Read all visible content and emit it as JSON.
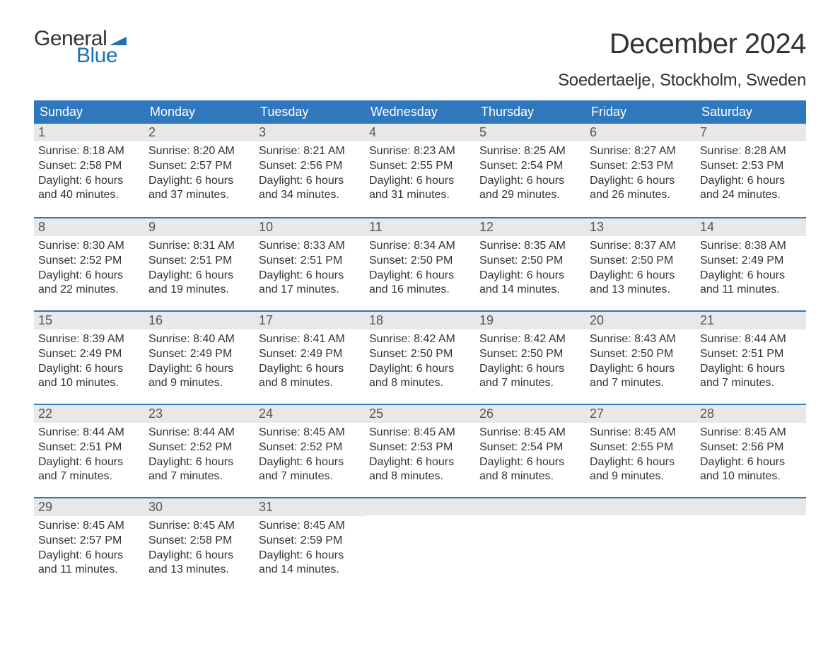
{
  "brand": {
    "word1": "General",
    "word2": "Blue",
    "word1_color": "#333333",
    "word2_color": "#1f6fb2",
    "flag_color": "#1f6fb2",
    "fontsize": 30
  },
  "title": {
    "text": "December 2024",
    "fontsize": 40,
    "color": "#333333"
  },
  "location": {
    "text": "Soedertaelje, Stockholm, Sweden",
    "fontsize": 24,
    "color": "#333333"
  },
  "colors": {
    "header_bg": "#2f78bd",
    "header_text": "#ffffff",
    "daynum_bg": "#e8e8e8",
    "daynum_text": "#555555",
    "body_text": "#333333",
    "week_divider": "#2f78bd",
    "page_bg": "#ffffff"
  },
  "typography": {
    "weekday_fontsize": 18,
    "daynum_fontsize": 18,
    "body_fontsize": 16,
    "font_family": "Arial"
  },
  "layout": {
    "type": "table",
    "columns": 7,
    "rows": 5,
    "week_divider_width": 2
  },
  "weekdays": [
    "Sunday",
    "Monday",
    "Tuesday",
    "Wednesday",
    "Thursday",
    "Friday",
    "Saturday"
  ],
  "weeks": [
    [
      {
        "num": "1",
        "sunrise": "Sunrise: 8:18 AM",
        "sunset": "Sunset: 2:58 PM",
        "day1": "Daylight: 6 hours",
        "day2": "and 40 minutes."
      },
      {
        "num": "2",
        "sunrise": "Sunrise: 8:20 AM",
        "sunset": "Sunset: 2:57 PM",
        "day1": "Daylight: 6 hours",
        "day2": "and 37 minutes."
      },
      {
        "num": "3",
        "sunrise": "Sunrise: 8:21 AM",
        "sunset": "Sunset: 2:56 PM",
        "day1": "Daylight: 6 hours",
        "day2": "and 34 minutes."
      },
      {
        "num": "4",
        "sunrise": "Sunrise: 8:23 AM",
        "sunset": "Sunset: 2:55 PM",
        "day1": "Daylight: 6 hours",
        "day2": "and 31 minutes."
      },
      {
        "num": "5",
        "sunrise": "Sunrise: 8:25 AM",
        "sunset": "Sunset: 2:54 PM",
        "day1": "Daylight: 6 hours",
        "day2": "and 29 minutes."
      },
      {
        "num": "6",
        "sunrise": "Sunrise: 8:27 AM",
        "sunset": "Sunset: 2:53 PM",
        "day1": "Daylight: 6 hours",
        "day2": "and 26 minutes."
      },
      {
        "num": "7",
        "sunrise": "Sunrise: 8:28 AM",
        "sunset": "Sunset: 2:53 PM",
        "day1": "Daylight: 6 hours",
        "day2": "and 24 minutes."
      }
    ],
    [
      {
        "num": "8",
        "sunrise": "Sunrise: 8:30 AM",
        "sunset": "Sunset: 2:52 PM",
        "day1": "Daylight: 6 hours",
        "day2": "and 22 minutes."
      },
      {
        "num": "9",
        "sunrise": "Sunrise: 8:31 AM",
        "sunset": "Sunset: 2:51 PM",
        "day1": "Daylight: 6 hours",
        "day2": "and 19 minutes."
      },
      {
        "num": "10",
        "sunrise": "Sunrise: 8:33 AM",
        "sunset": "Sunset: 2:51 PM",
        "day1": "Daylight: 6 hours",
        "day2": "and 17 minutes."
      },
      {
        "num": "11",
        "sunrise": "Sunrise: 8:34 AM",
        "sunset": "Sunset: 2:50 PM",
        "day1": "Daylight: 6 hours",
        "day2": "and 16 minutes."
      },
      {
        "num": "12",
        "sunrise": "Sunrise: 8:35 AM",
        "sunset": "Sunset: 2:50 PM",
        "day1": "Daylight: 6 hours",
        "day2": "and 14 minutes."
      },
      {
        "num": "13",
        "sunrise": "Sunrise: 8:37 AM",
        "sunset": "Sunset: 2:50 PM",
        "day1": "Daylight: 6 hours",
        "day2": "and 13 minutes."
      },
      {
        "num": "14",
        "sunrise": "Sunrise: 8:38 AM",
        "sunset": "Sunset: 2:49 PM",
        "day1": "Daylight: 6 hours",
        "day2": "and 11 minutes."
      }
    ],
    [
      {
        "num": "15",
        "sunrise": "Sunrise: 8:39 AM",
        "sunset": "Sunset: 2:49 PM",
        "day1": "Daylight: 6 hours",
        "day2": "and 10 minutes."
      },
      {
        "num": "16",
        "sunrise": "Sunrise: 8:40 AM",
        "sunset": "Sunset: 2:49 PM",
        "day1": "Daylight: 6 hours",
        "day2": "and 9 minutes."
      },
      {
        "num": "17",
        "sunrise": "Sunrise: 8:41 AM",
        "sunset": "Sunset: 2:49 PM",
        "day1": "Daylight: 6 hours",
        "day2": "and 8 minutes."
      },
      {
        "num": "18",
        "sunrise": "Sunrise: 8:42 AM",
        "sunset": "Sunset: 2:50 PM",
        "day1": "Daylight: 6 hours",
        "day2": "and 8 minutes."
      },
      {
        "num": "19",
        "sunrise": "Sunrise: 8:42 AM",
        "sunset": "Sunset: 2:50 PM",
        "day1": "Daylight: 6 hours",
        "day2": "and 7 minutes."
      },
      {
        "num": "20",
        "sunrise": "Sunrise: 8:43 AM",
        "sunset": "Sunset: 2:50 PM",
        "day1": "Daylight: 6 hours",
        "day2": "and 7 minutes."
      },
      {
        "num": "21",
        "sunrise": "Sunrise: 8:44 AM",
        "sunset": "Sunset: 2:51 PM",
        "day1": "Daylight: 6 hours",
        "day2": "and 7 minutes."
      }
    ],
    [
      {
        "num": "22",
        "sunrise": "Sunrise: 8:44 AM",
        "sunset": "Sunset: 2:51 PM",
        "day1": "Daylight: 6 hours",
        "day2": "and 7 minutes."
      },
      {
        "num": "23",
        "sunrise": "Sunrise: 8:44 AM",
        "sunset": "Sunset: 2:52 PM",
        "day1": "Daylight: 6 hours",
        "day2": "and 7 minutes."
      },
      {
        "num": "24",
        "sunrise": "Sunrise: 8:45 AM",
        "sunset": "Sunset: 2:52 PM",
        "day1": "Daylight: 6 hours",
        "day2": "and 7 minutes."
      },
      {
        "num": "25",
        "sunrise": "Sunrise: 8:45 AM",
        "sunset": "Sunset: 2:53 PM",
        "day1": "Daylight: 6 hours",
        "day2": "and 8 minutes."
      },
      {
        "num": "26",
        "sunrise": "Sunrise: 8:45 AM",
        "sunset": "Sunset: 2:54 PM",
        "day1": "Daylight: 6 hours",
        "day2": "and 8 minutes."
      },
      {
        "num": "27",
        "sunrise": "Sunrise: 8:45 AM",
        "sunset": "Sunset: 2:55 PM",
        "day1": "Daylight: 6 hours",
        "day2": "and 9 minutes."
      },
      {
        "num": "28",
        "sunrise": "Sunrise: 8:45 AM",
        "sunset": "Sunset: 2:56 PM",
        "day1": "Daylight: 6 hours",
        "day2": "and 10 minutes."
      }
    ],
    [
      {
        "num": "29",
        "sunrise": "Sunrise: 8:45 AM",
        "sunset": "Sunset: 2:57 PM",
        "day1": "Daylight: 6 hours",
        "day2": "and 11 minutes."
      },
      {
        "num": "30",
        "sunrise": "Sunrise: 8:45 AM",
        "sunset": "Sunset: 2:58 PM",
        "day1": "Daylight: 6 hours",
        "day2": "and 13 minutes."
      },
      {
        "num": "31",
        "sunrise": "Sunrise: 8:45 AM",
        "sunset": "Sunset: 2:59 PM",
        "day1": "Daylight: 6 hours",
        "day2": "and 14 minutes."
      },
      {
        "empty": true
      },
      {
        "empty": true
      },
      {
        "empty": true
      },
      {
        "empty": true
      }
    ]
  ]
}
